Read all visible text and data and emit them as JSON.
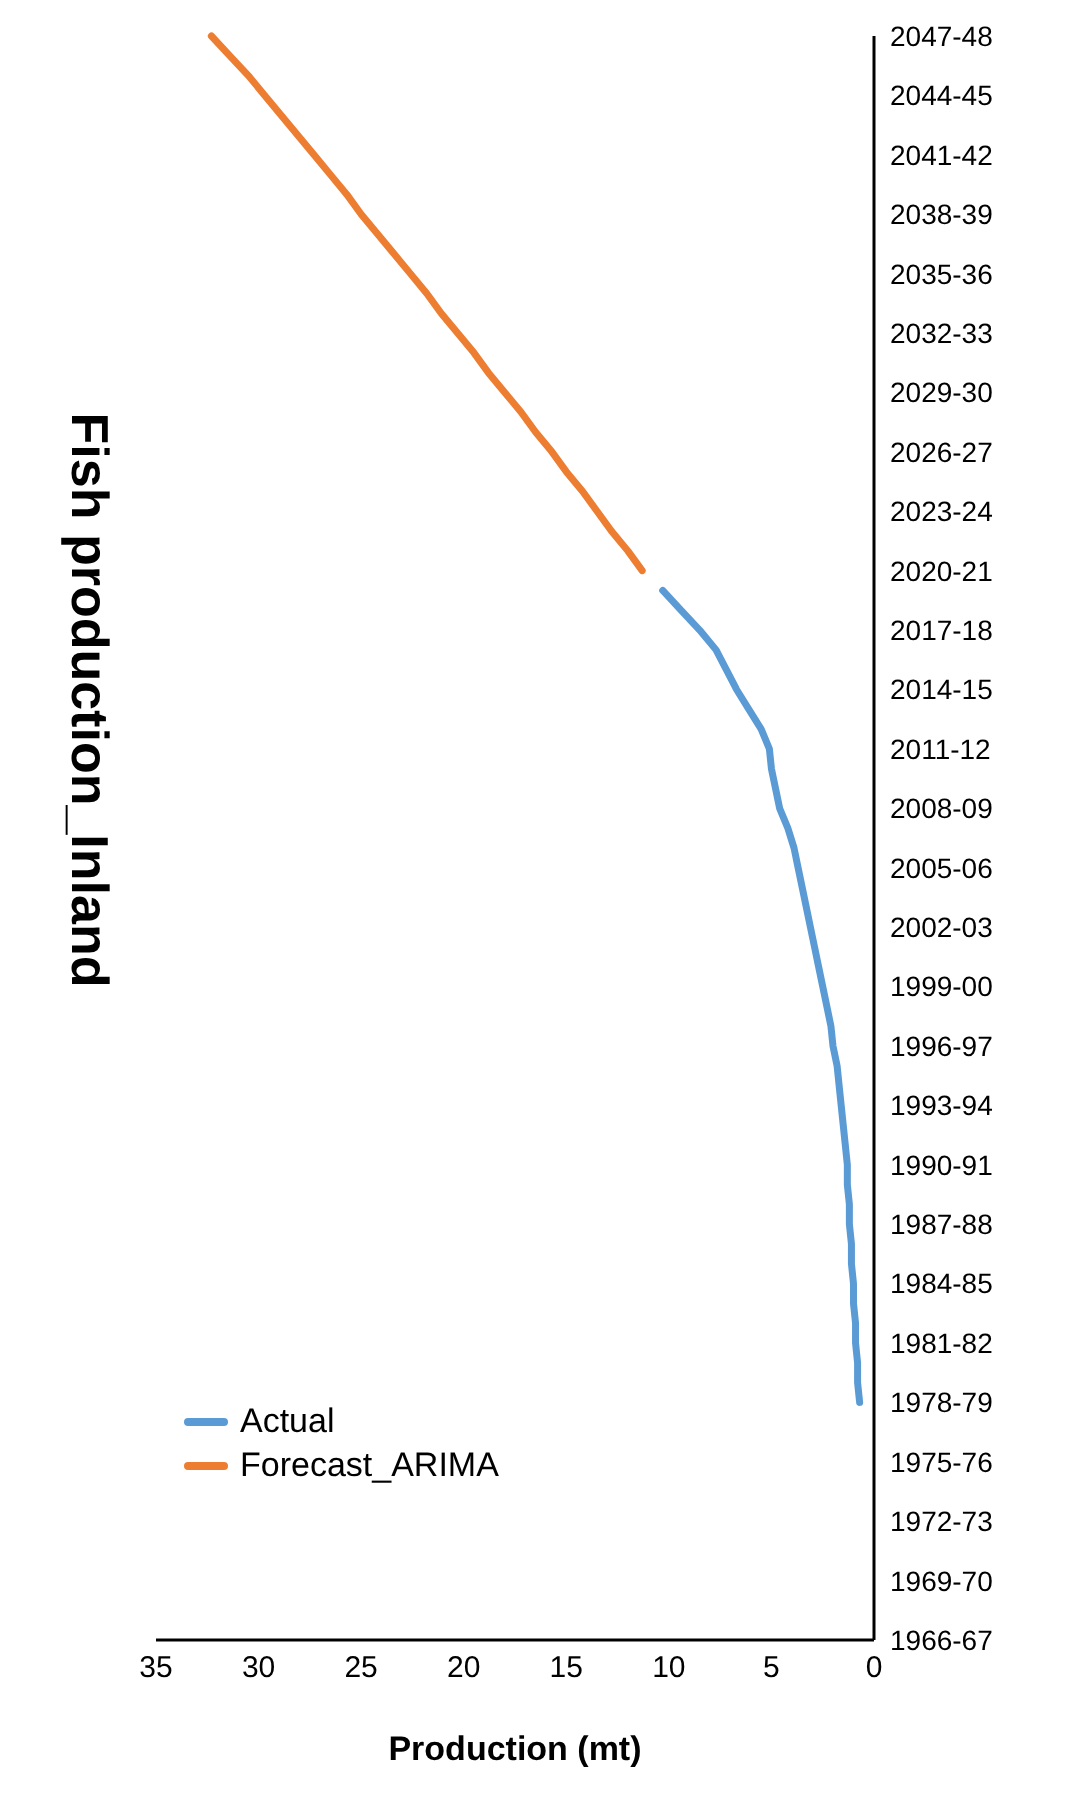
{
  "chart_data": {
    "type": "line",
    "orientation": "horizontal",
    "title": "Fish production_Inland",
    "xlabel": "Production (mt)",
    "categories": [
      "2047-48",
      null,
      null,
      "2044-45",
      null,
      null,
      "2041-42",
      null,
      null,
      "2038-39",
      null,
      null,
      "2035-36",
      null,
      null,
      "2032-33",
      null,
      null,
      "2029-30",
      null,
      null,
      "2026-27",
      null,
      null,
      "2023-24",
      null,
      null,
      "2020-21",
      null,
      null,
      "2017-18",
      null,
      null,
      "2014-15",
      null,
      null,
      "2011-12",
      null,
      null,
      "2008-09",
      null,
      null,
      "2005-06",
      null,
      null,
      "2002-03",
      null,
      null,
      "1999-00",
      null,
      null,
      "1996-97",
      null,
      null,
      "1993-94",
      null,
      null,
      "1990-91",
      null,
      null,
      "1987-88",
      null,
      null,
      "1984-85",
      null,
      null,
      "1981-82",
      null,
      null,
      "1978-79",
      null,
      null,
      "1975-76",
      null,
      null,
      "1972-73",
      null,
      null,
      "1969-70",
      null,
      null,
      "1966-67"
    ],
    "series": [
      {
        "name": "Actual",
        "color": "#5b9bd5",
        "values": [
          null,
          null,
          null,
          null,
          null,
          null,
          null,
          null,
          null,
          null,
          null,
          null,
          null,
          null,
          null,
          null,
          null,
          null,
          null,
          null,
          null,
          null,
          null,
          null,
          null,
          null,
          null,
          null,
          10.3,
          9.4,
          8.5,
          7.7,
          7.2,
          6.7,
          6.1,
          5.5,
          5.1,
          5.0,
          4.8,
          4.6,
          4.2,
          3.9,
          3.7,
          3.5,
          3.3,
          3.1,
          2.9,
          2.7,
          2.5,
          2.3,
          2.1,
          2.0,
          1.8,
          1.7,
          1.6,
          1.5,
          1.4,
          1.3,
          1.3,
          1.2,
          1.2,
          1.1,
          1.1,
          1.0,
          1.0,
          0.9,
          0.9,
          0.8,
          0.8,
          0.7,
          null,
          null,
          null,
          null,
          null,
          null,
          null,
          null,
          null,
          null,
          null,
          null
        ]
      },
      {
        "name": "Forecast_ARIMA",
        "color": "#ed7d31",
        "values": [
          32.3,
          31.4,
          30.5,
          29.7,
          28.9,
          28.1,
          27.3,
          26.5,
          25.7,
          25.0,
          24.2,
          23.4,
          22.6,
          21.8,
          21.1,
          20.3,
          19.5,
          18.8,
          18.0,
          17.2,
          16.5,
          15.7,
          15.0,
          14.2,
          13.5,
          12.8,
          12.0,
          11.3,
          null,
          null,
          null,
          null,
          null,
          null,
          null,
          null,
          null,
          null,
          null,
          null,
          null,
          null,
          null,
          null,
          null,
          null,
          null,
          null,
          null,
          null,
          null,
          null,
          null,
          null,
          null,
          null,
          null,
          null,
          null,
          null,
          null,
          null,
          null,
          null,
          null,
          null,
          null,
          null,
          null,
          null,
          null,
          null,
          null,
          null,
          null,
          null,
          null,
          null,
          null,
          null,
          null,
          null
        ]
      }
    ],
    "xlim": [
      35,
      0
    ],
    "xticks": [
      35,
      30,
      25,
      20,
      15,
      10,
      5,
      0
    ],
    "grid": false,
    "legend": "bottom left",
    "marker": "none",
    "line_style": "solid"
  }
}
